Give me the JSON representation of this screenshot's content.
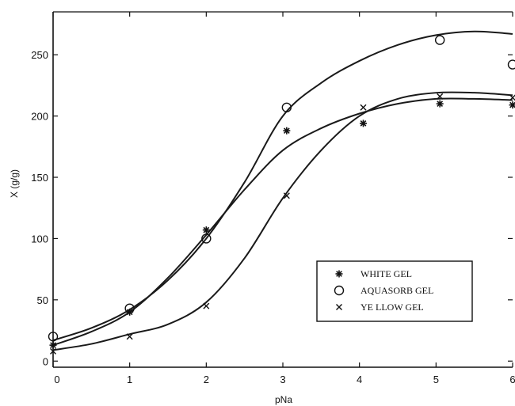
{
  "chart_data": {
    "type": "scatter",
    "xlabel": "pNa",
    "ylabel": "X (g/g)",
    "xlim": [
      0,
      6
    ],
    "ylim": [
      -5,
      285
    ],
    "x_ticks": [
      "0",
      "1",
      "2",
      "3",
      "4",
      "5",
      "6"
    ],
    "y_ticks": [
      "0",
      "50",
      "100",
      "150",
      "200",
      "250"
    ],
    "grid": false,
    "legend_position": "bottom-right",
    "series": [
      {
        "name": "WHITE GEL",
        "marker": "*",
        "points": [
          [
            0,
            13
          ],
          [
            1,
            40
          ],
          [
            2,
            107
          ],
          [
            3.05,
            188
          ],
          [
            4.05,
            194
          ],
          [
            5.05,
            210
          ],
          [
            6,
            209
          ]
        ],
        "fit": [
          [
            0,
            13
          ],
          [
            0.5,
            24
          ],
          [
            1,
            40
          ],
          [
            1.5,
            68
          ],
          [
            2,
            103
          ],
          [
            2.5,
            140
          ],
          [
            3,
            172
          ],
          [
            3.5,
            190
          ],
          [
            4,
            202
          ],
          [
            4.5,
            210
          ],
          [
            5,
            214
          ],
          [
            5.5,
            214
          ],
          [
            6,
            213
          ]
        ]
      },
      {
        "name": "AQUASORB GEL",
        "marker": "o",
        "points": [
          [
            0,
            20
          ],
          [
            1,
            43
          ],
          [
            2,
            100
          ],
          [
            3.05,
            207
          ],
          [
            5.05,
            262
          ],
          [
            6,
            242
          ]
        ],
        "fit": [
          [
            0,
            17
          ],
          [
            0.5,
            27
          ],
          [
            1,
            42
          ],
          [
            1.5,
            66
          ],
          [
            2,
            100
          ],
          [
            2.5,
            146
          ],
          [
            3,
            200
          ],
          [
            3.5,
            227
          ],
          [
            4,
            245
          ],
          [
            4.5,
            258
          ],
          [
            5,
            266
          ],
          [
            5.5,
            269
          ],
          [
            6,
            267
          ]
        ]
      },
      {
        "name": "YE LLOW GEL",
        "marker": "x",
        "points": [
          [
            0,
            8
          ],
          [
            1,
            20
          ],
          [
            2,
            45
          ],
          [
            3.05,
            135
          ],
          [
            4.05,
            207
          ],
          [
            5.05,
            216
          ],
          [
            6,
            215
          ]
        ],
        "fit": [
          [
            0,
            9
          ],
          [
            0.5,
            14
          ],
          [
            1,
            22
          ],
          [
            1.5,
            30
          ],
          [
            2,
            48
          ],
          [
            2.5,
            84
          ],
          [
            3,
            133
          ],
          [
            3.5,
            172
          ],
          [
            4,
            200
          ],
          [
            4.5,
            214
          ],
          [
            5,
            219
          ],
          [
            5.5,
            219
          ],
          [
            6,
            217
          ]
        ]
      }
    ]
  }
}
